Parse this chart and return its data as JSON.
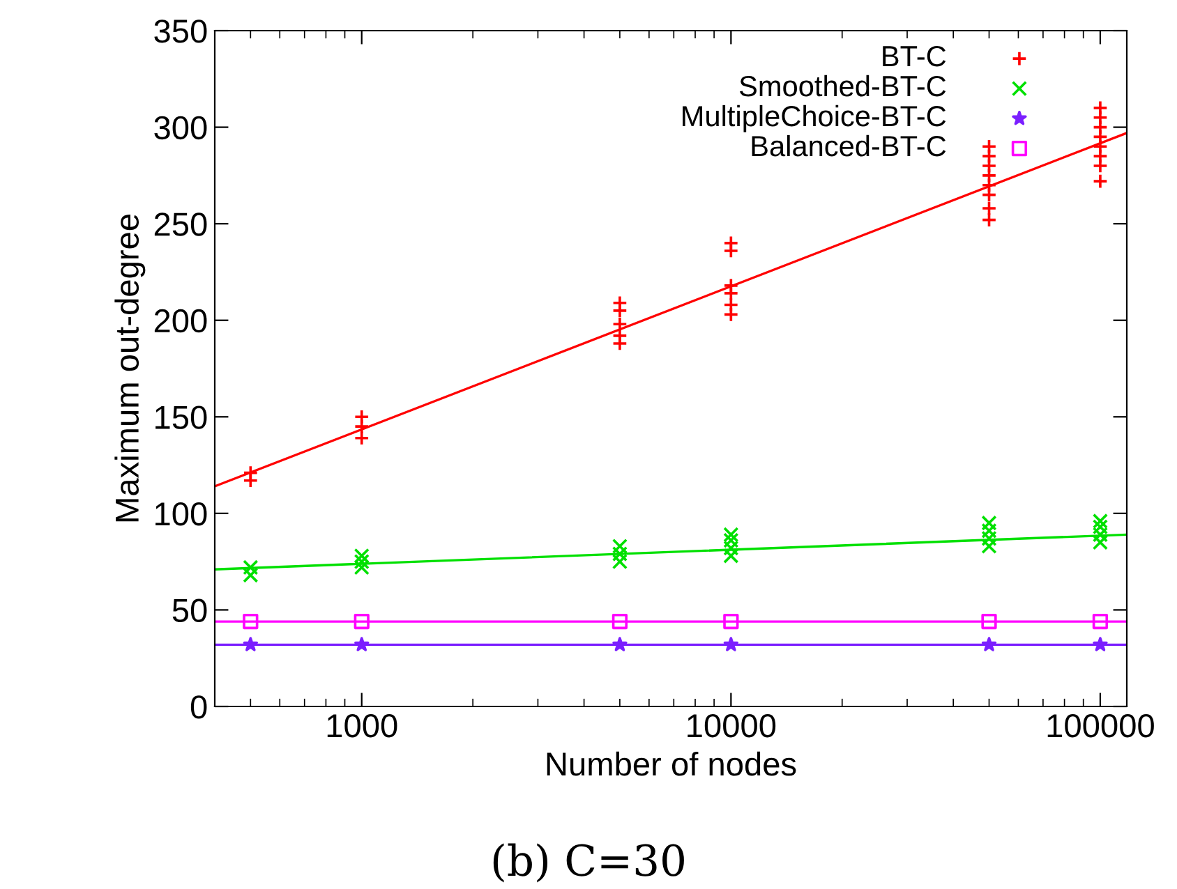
{
  "chart_data": {
    "type": "scatter",
    "xlabel": "Number of nodes",
    "ylabel": "Maximum out-degree",
    "annotations": [
      "(b) C=30"
    ],
    "log": "x",
    "xlim": [
      400,
      118000
    ],
    "xticks": [
      1000,
      10000,
      100000
    ],
    "ylim": [
      0,
      350
    ],
    "yticks": [
      0,
      50,
      100,
      150,
      200,
      250,
      300,
      350
    ],
    "grid": false,
    "legend": "top right",
    "series": [
      {
        "name": "BT-C",
        "color": "#ff0000",
        "marker": "cross",
        "x": [
          500,
          500,
          1000,
          1000,
          1000,
          5000,
          5000,
          5000,
          5000,
          5000,
          10000,
          10000,
          10000,
          10000,
          10000,
          10000,
          50000,
          50000,
          50000,
          50000,
          50000,
          50000,
          50000,
          50000,
          100000,
          100000,
          100000,
          100000,
          100000,
          100000,
          100000,
          100000
        ],
        "values": [
          117,
          121,
          139,
          145,
          150,
          188,
          192,
          198,
          205,
          209,
          203,
          208,
          214,
          218,
          236,
          240,
          252,
          258,
          265,
          270,
          275,
          280,
          285,
          290,
          272,
          280,
          285,
          290,
          295,
          300,
          305,
          310
        ]
      },
      {
        "name": "Smoothed-BT-C",
        "color": "#00e000",
        "marker": "x",
        "x": [
          500,
          500,
          1000,
          1000,
          1000,
          5000,
          5000,
          5000,
          10000,
          10000,
          10000,
          10000,
          50000,
          50000,
          50000,
          50000,
          100000,
          100000,
          100000,
          100000
        ],
        "values": [
          68,
          72,
          72,
          75,
          78,
          75,
          79,
          83,
          78,
          82,
          86,
          89,
          83,
          87,
          91,
          95,
          85,
          89,
          93,
          96
        ]
      },
      {
        "name": "MultipleChoice-BT-C",
        "color": "#7b1fff",
        "marker": "star",
        "x": [
          500,
          1000,
          5000,
          10000,
          50000,
          100000
        ],
        "values": [
          32,
          32,
          32,
          32,
          32,
          32
        ]
      },
      {
        "name": "Balanced-BT-C",
        "color": "#ff00ff",
        "marker": "square",
        "x": [
          500,
          1000,
          5000,
          10000,
          50000,
          100000
        ],
        "values": [
          44,
          44,
          44,
          44,
          44,
          44
        ]
      },
      {
        "type": "line",
        "color": "#ff0000",
        "x": [
          400,
          118000
        ],
        "values": [
          114,
          297
        ]
      },
      {
        "type": "line",
        "color": "#00e000",
        "x": [
          400,
          118000
        ],
        "values": [
          71,
          89
        ]
      },
      {
        "type": "line",
        "color": "#7b1fff",
        "x": [
          400,
          118000
        ],
        "values": [
          32,
          32
        ]
      },
      {
        "type": "line",
        "color": "#ff00ff",
        "x": [
          400,
          118000
        ],
        "values": [
          44,
          44
        ]
      }
    ]
  }
}
